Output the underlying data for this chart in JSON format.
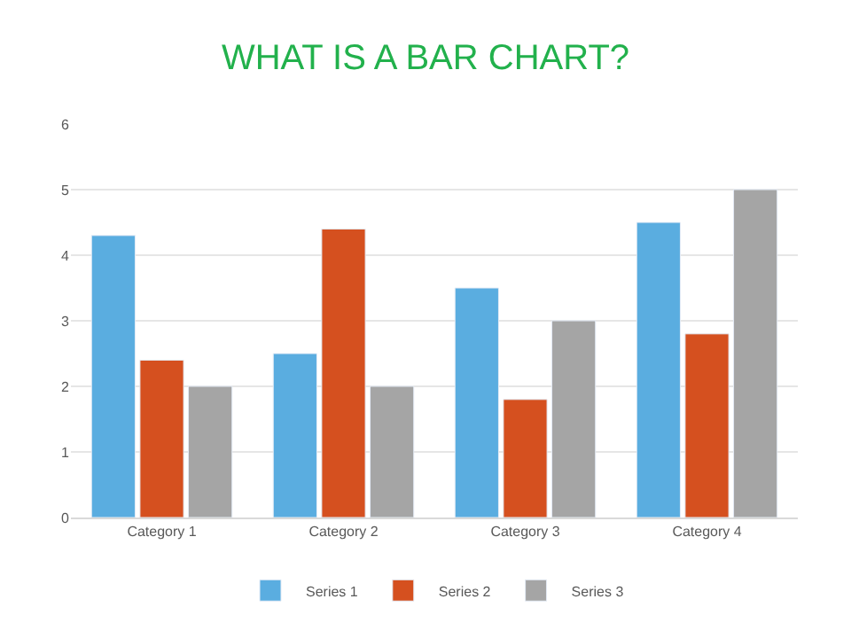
{
  "chart_data": {
    "type": "bar",
    "title": "WHAT IS A BAR CHART?",
    "categories": [
      "Category 1",
      "Category 2",
      "Category 3",
      "Category 4"
    ],
    "series": [
      {
        "name": "Series 1",
        "color": "#5aade0",
        "values": [
          4.3,
          2.5,
          3.5,
          4.5
        ]
      },
      {
        "name": "Series 2",
        "color": "#d5501f",
        "values": [
          2.4,
          4.4,
          1.8,
          2.8
        ]
      },
      {
        "name": "Series 3",
        "color": "#a5a5a5",
        "values": [
          2,
          2,
          3,
          5
        ]
      }
    ],
    "ylim": [
      0,
      6
    ],
    "yticks": [
      0,
      1,
      2,
      3,
      4,
      5,
      6
    ],
    "grid": "y",
    "legend": "bottom"
  }
}
